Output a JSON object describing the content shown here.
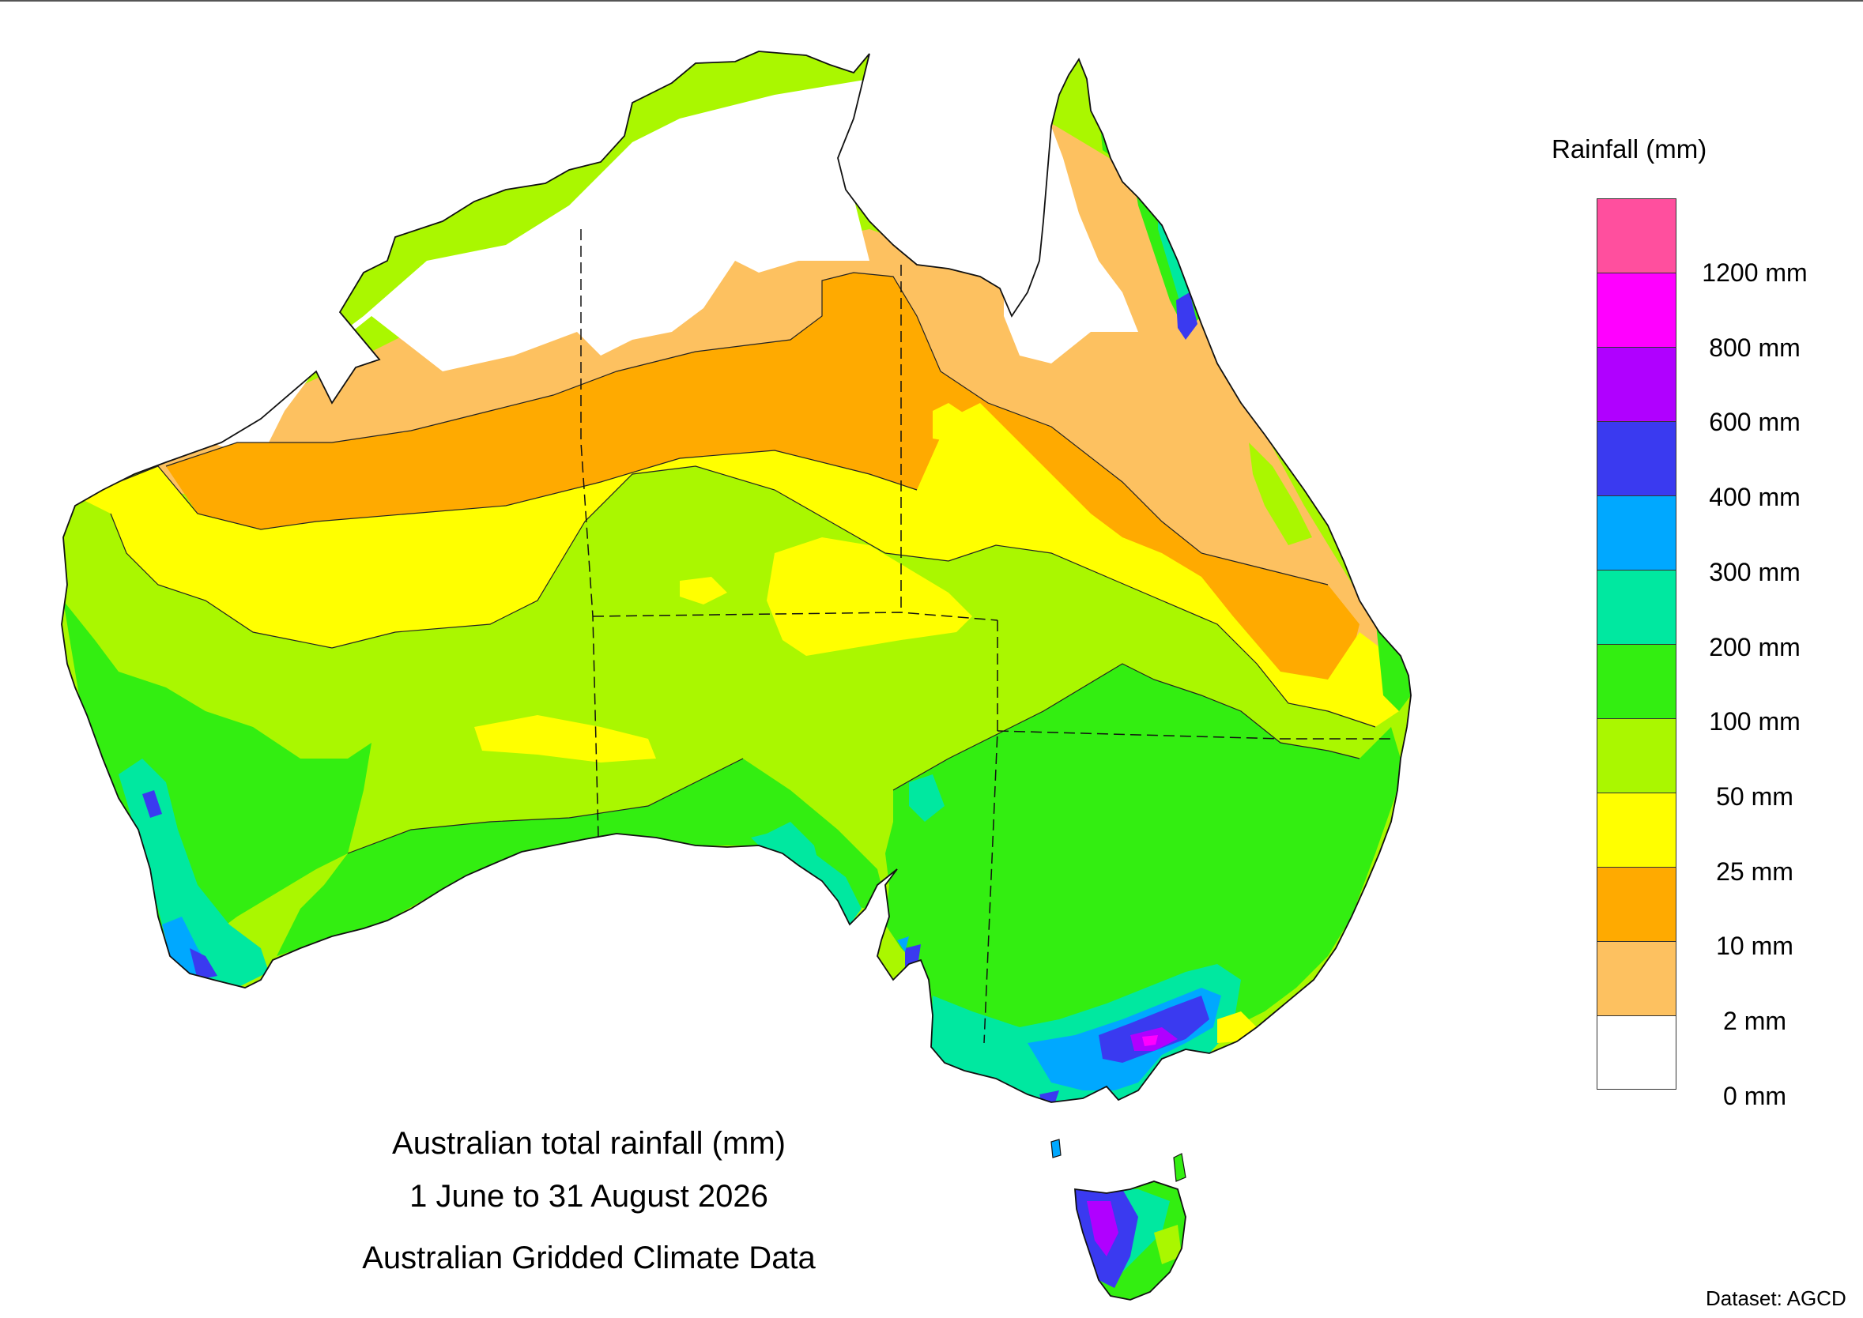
{
  "legend": {
    "title": "Rainfall (mm)",
    "classes": [
      {
        "range": "1200+ mm",
        "color": "#ff4f9e"
      },
      {
        "range": "800–1200 mm",
        "color": "#ff00ff"
      },
      {
        "range": "600–800 mm",
        "color": "#b000ff"
      },
      {
        "range": "400–600 mm",
        "color": "#3a3af0"
      },
      {
        "range": "300–400 mm",
        "color": "#00a8ff"
      },
      {
        "range": "200–300 mm",
        "color": "#00e8a0"
      },
      {
        "range": "100–200 mm",
        "color": "#33ee11"
      },
      {
        "range": "50–100 mm",
        "color": "#aaf700"
      },
      {
        "range": "25–50 mm",
        "color": "#ffff00"
      },
      {
        "range": "10–25 mm",
        "color": "#ffaa00"
      },
      {
        "range": "2–10 mm",
        "color": "#fdc160"
      },
      {
        "range": "0–2 mm",
        "color": "#ffffff"
      }
    ],
    "labels": [
      "1200 mm",
      "800 mm",
      "600 mm",
      "400 mm",
      "300 mm",
      "200 mm",
      "100 mm",
      "50 mm",
      "25 mm",
      "10 mm",
      "2 mm",
      "0 mm"
    ]
  },
  "caption": {
    "line1": "Australian total rainfall (mm)",
    "line2": "1 June to 31 August 2026",
    "line3": "Australian Gridded Climate Data"
  },
  "dataset": "Dataset: AGCD",
  "colors": {
    "outline": "#111111",
    "frame": "#555555"
  }
}
